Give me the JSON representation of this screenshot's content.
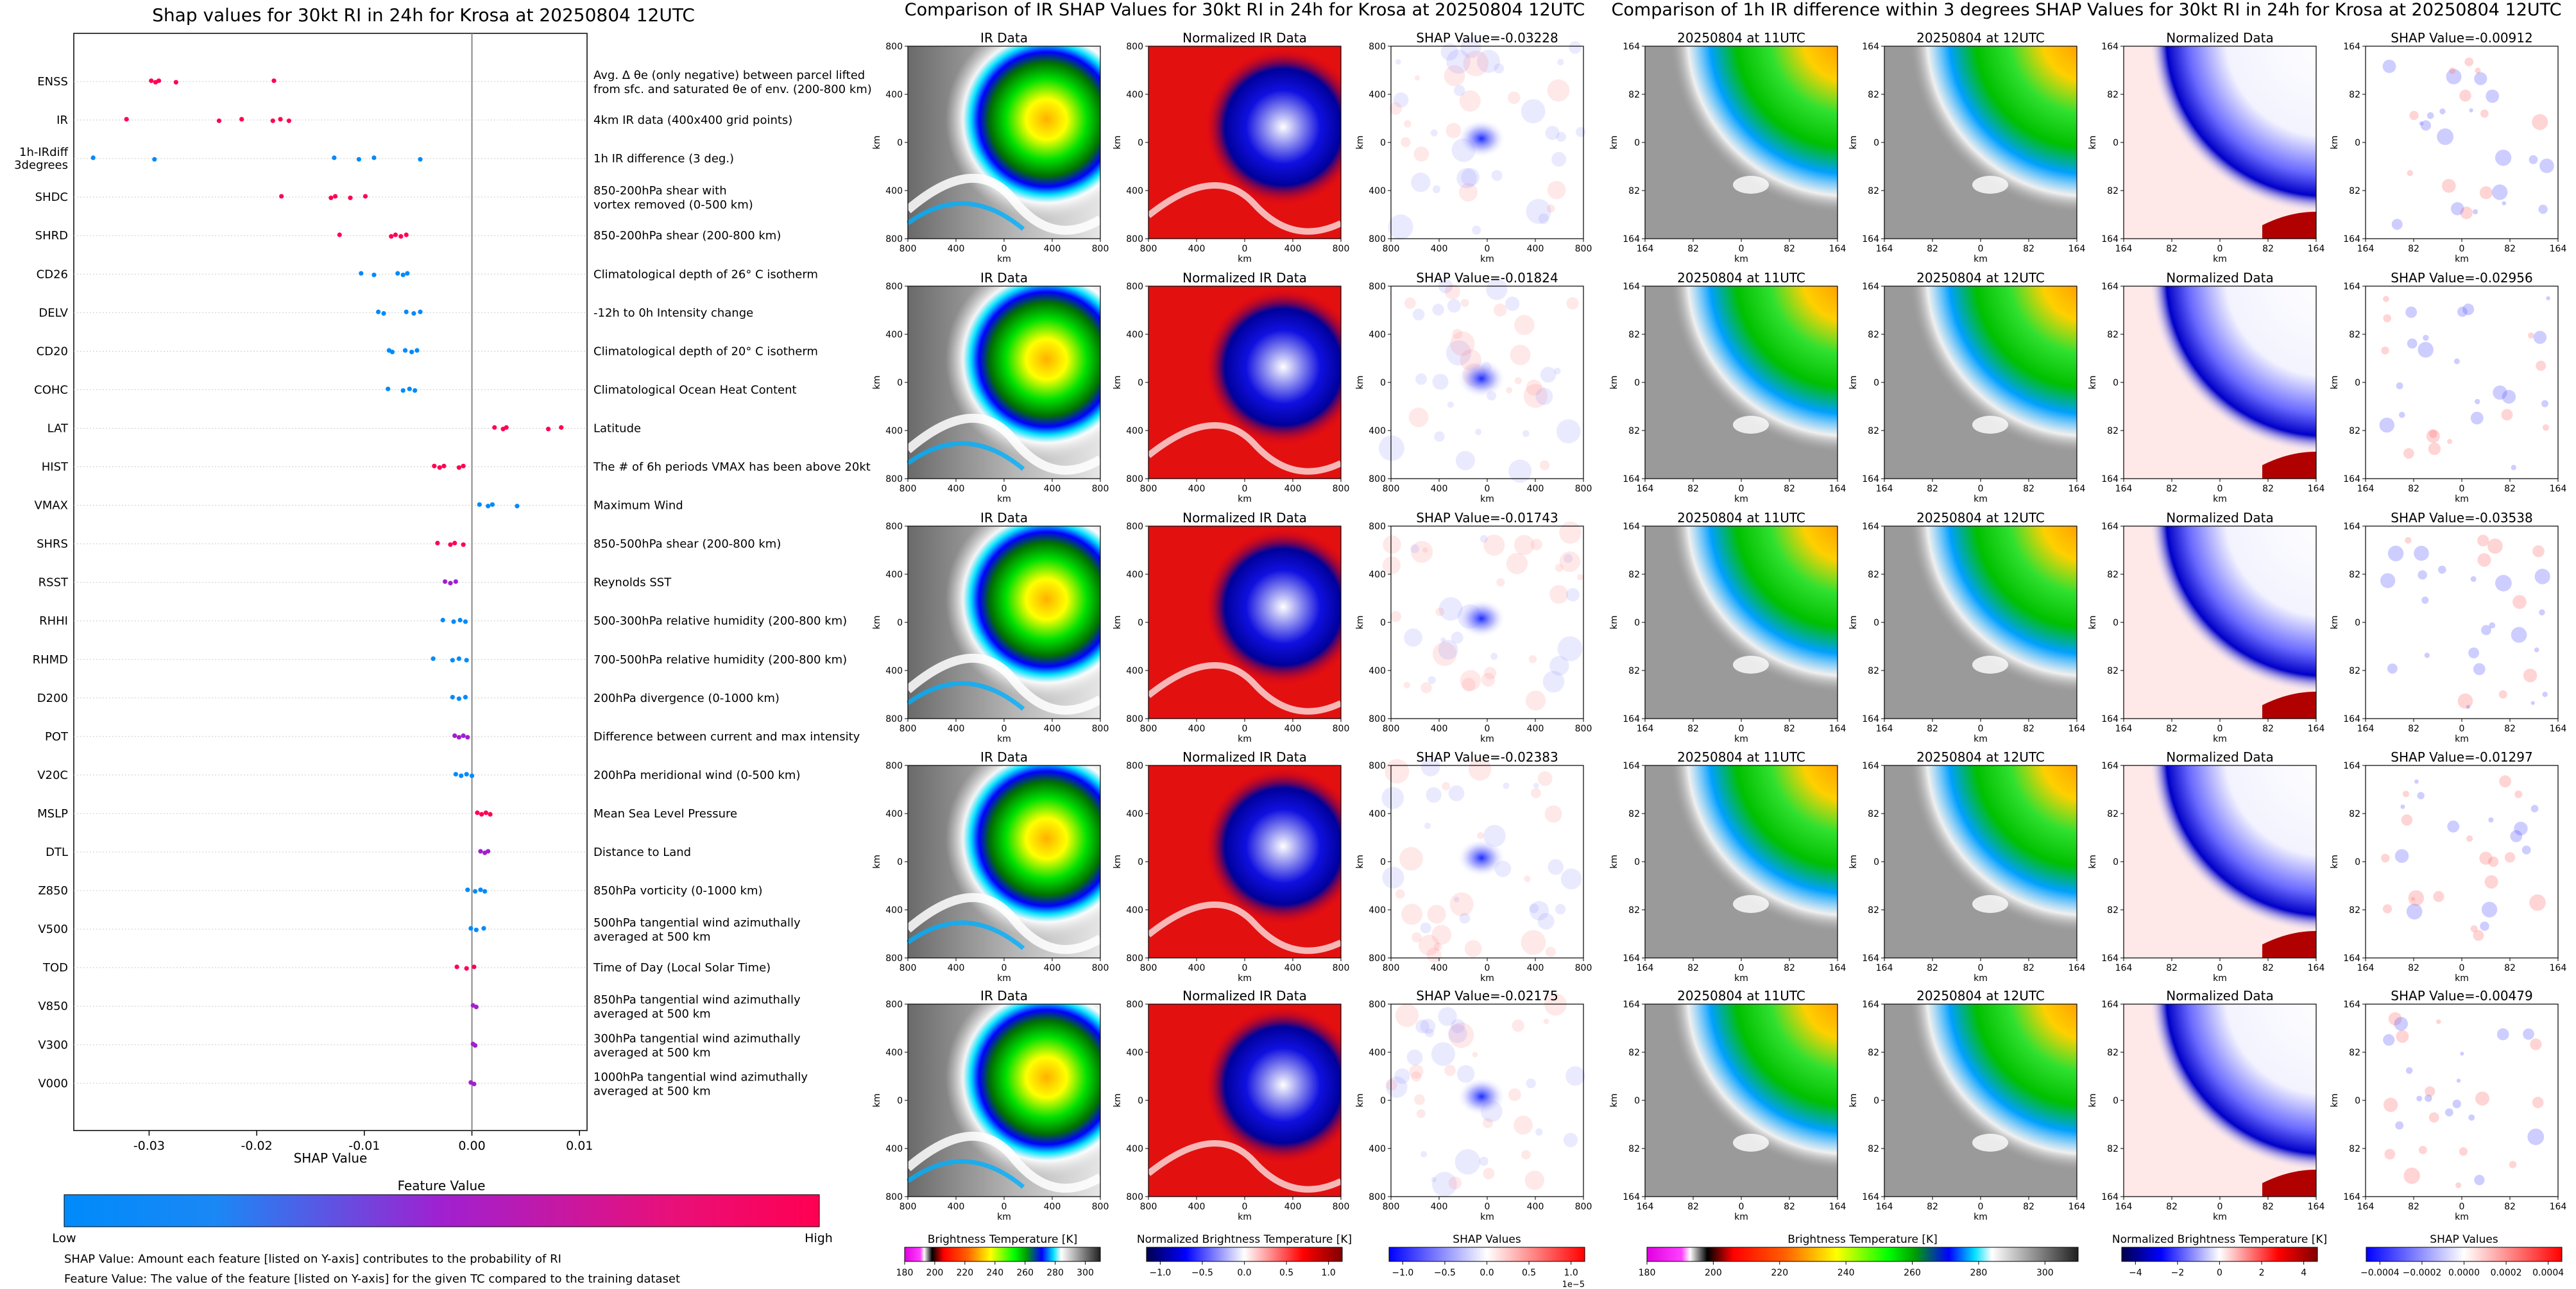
{
  "swarm": {
    "title": "Shap values for 30kt RI in 24h for Krosa at 20250804 12UTC",
    "xlabel": "SHAP Value",
    "xticks": [
      "-0.03",
      "-0.02",
      "-0.01",
      "0.00",
      "0.01"
    ],
    "colorbar_title": "Feature Value",
    "colorbar_low": "Low",
    "colorbar_high": "High",
    "note1": "SHAP Value: Amount each feature [listed on Y-axis] contributes to the probability of RI",
    "note2": "Feature Value: The value of the feature [listed on Y-axis] for the given TC compared to the training dataset"
  },
  "chart_data": [
    {
      "type": "scatter",
      "title": "Shap values for 30kt RI in 24h for Krosa at 20250804 12UTC",
      "xlabel": "SHAP Value",
      "xlim": [
        -0.037,
        0.0107
      ],
      "colors": {
        "low": "#008afb",
        "mid": "#a020d0",
        "high": "#ff0052"
      },
      "features": [
        {
          "code": "ENSS",
          "desc": [
            "Avg. Δ θe (only negative) between parcel lifted",
            "from sfc. and saturated θe of env. (200-800 km)"
          ],
          "points": [
            [
              -0.0298,
              "high"
            ],
            [
              -0.0294,
              "high"
            ],
            [
              -0.0291,
              "high"
            ],
            [
              -0.0275,
              "high"
            ],
            [
              -0.0184,
              "high"
            ]
          ]
        },
        {
          "code": "IR",
          "desc": [
            "4km IR data (400x400 grid points)"
          ],
          "points": [
            [
              -0.0321,
              "high"
            ],
            [
              -0.0235,
              "high"
            ],
            [
              -0.0214,
              "high"
            ],
            [
              -0.0185,
              "high"
            ],
            [
              -0.0178,
              "high"
            ],
            [
              -0.017,
              "high"
            ]
          ]
        },
        {
          "code": "1h-IRdiff 3degrees",
          "desc": [
            "1h IR difference (3 deg.)"
          ],
          "points": [
            [
              -0.0352,
              "low"
            ],
            [
              -0.0295,
              "low"
            ],
            [
              -0.0128,
              "low"
            ],
            [
              -0.0105,
              "low"
            ],
            [
              -0.0091,
              "low"
            ],
            [
              -0.0048,
              "low"
            ]
          ]
        },
        {
          "code": "SHDC",
          "desc": [
            "850-200hPa shear with",
            "vortex removed (0-500 km)"
          ],
          "points": [
            [
              -0.0177,
              "high"
            ],
            [
              -0.0131,
              "high"
            ],
            [
              -0.0127,
              "high"
            ],
            [
              -0.0113,
              "high"
            ],
            [
              -0.0099,
              "high"
            ]
          ]
        },
        {
          "code": "SHRD",
          "desc": [
            "850-200hPa shear (200-800 km)"
          ],
          "points": [
            [
              -0.0123,
              "high"
            ],
            [
              -0.0075,
              "high"
            ],
            [
              -0.0071,
              "high"
            ],
            [
              -0.0066,
              "high"
            ],
            [
              -0.0061,
              "high"
            ]
          ]
        },
        {
          "code": "CD26",
          "desc": [
            "Climatological depth of 26° C isotherm"
          ],
          "points": [
            [
              -0.0103,
              "low"
            ],
            [
              -0.0091,
              "low"
            ],
            [
              -0.0069,
              "low"
            ],
            [
              -0.0064,
              "low"
            ],
            [
              -0.006,
              "low"
            ]
          ]
        },
        {
          "code": "DELV",
          "desc": [
            "-12h to 0h Intensity change"
          ],
          "points": [
            [
              -0.0087,
              "low"
            ],
            [
              -0.0082,
              "low"
            ],
            [
              -0.0061,
              "low"
            ],
            [
              -0.0054,
              "low"
            ],
            [
              -0.0048,
              "low"
            ]
          ]
        },
        {
          "code": "CD20",
          "desc": [
            "Climatological depth of 20° C isotherm"
          ],
          "points": [
            [
              -0.0077,
              "low"
            ],
            [
              -0.0074,
              "low"
            ],
            [
              -0.0062,
              "low"
            ],
            [
              -0.0056,
              "low"
            ],
            [
              -0.0051,
              "low"
            ]
          ]
        },
        {
          "code": "COHC",
          "desc": [
            "Climatological Ocean Heat Content"
          ],
          "points": [
            [
              -0.0078,
              "low"
            ],
            [
              -0.0064,
              "low"
            ],
            [
              -0.0058,
              "low"
            ],
            [
              -0.0053,
              "low"
            ]
          ]
        },
        {
          "code": "LAT",
          "desc": [
            "Latitude"
          ],
          "points": [
            [
              0.0021,
              "high"
            ],
            [
              0.0029,
              "high"
            ],
            [
              0.0032,
              "high"
            ],
            [
              0.0071,
              "high"
            ],
            [
              0.0083,
              "high"
            ]
          ]
        },
        {
          "code": "HIST",
          "desc": [
            "The # of 6h periods VMAX has been above 20kt"
          ],
          "points": [
            [
              -0.0035,
              "high"
            ],
            [
              -0.003,
              "high"
            ],
            [
              -0.0026,
              "high"
            ],
            [
              -0.0012,
              "high"
            ],
            [
              -0.0008,
              "high"
            ]
          ]
        },
        {
          "code": "VMAX",
          "desc": [
            "Maximum Wind"
          ],
          "points": [
            [
              0.0007,
              "low"
            ],
            [
              0.0015,
              "low"
            ],
            [
              0.0019,
              "low"
            ],
            [
              0.0042,
              "low"
            ]
          ]
        },
        {
          "code": "SHRS",
          "desc": [
            "850-500hPa shear (200-800 km)"
          ],
          "points": [
            [
              -0.0032,
              "high"
            ],
            [
              -0.002,
              "high"
            ],
            [
              -0.0016,
              "high"
            ],
            [
              -0.0008,
              "high"
            ]
          ]
        },
        {
          "code": "RSST",
          "desc": [
            "Reynolds SST"
          ],
          "points": [
            [
              -0.0025,
              "mid"
            ],
            [
              -0.002,
              "mid"
            ],
            [
              -0.0015,
              "mid"
            ]
          ]
        },
        {
          "code": "RHHI",
          "desc": [
            "500-300hPa relative humidity (200-800 km)"
          ],
          "points": [
            [
              -0.0027,
              "low"
            ],
            [
              -0.0017,
              "low"
            ],
            [
              -0.0011,
              "low"
            ],
            [
              -0.0006,
              "low"
            ]
          ]
        },
        {
          "code": "RHMD",
          "desc": [
            "700-500hPa relative humidity (200-800 km)"
          ],
          "points": [
            [
              -0.0036,
              "low"
            ],
            [
              -0.0018,
              "low"
            ],
            [
              -0.0012,
              "low"
            ],
            [
              -0.0005,
              "low"
            ]
          ]
        },
        {
          "code": "D200",
          "desc": [
            "200hPa divergence (0-1000 km)"
          ],
          "points": [
            [
              -0.0018,
              "low"
            ],
            [
              -0.0012,
              "low"
            ],
            [
              -0.0006,
              "low"
            ]
          ]
        },
        {
          "code": "POT",
          "desc": [
            "Difference between current and max intensity"
          ],
          "points": [
            [
              -0.0016,
              "mid"
            ],
            [
              -0.0012,
              "mid"
            ],
            [
              -0.0008,
              "mid"
            ],
            [
              -0.0004,
              "mid"
            ]
          ]
        },
        {
          "code": "V20C",
          "desc": [
            "200hPa meridional wind (0-500 km)"
          ],
          "points": [
            [
              -0.0015,
              "low"
            ],
            [
              -0.001,
              "low"
            ],
            [
              -0.0005,
              "low"
            ],
            [
              0.0,
              "low"
            ]
          ]
        },
        {
          "code": "MSLP",
          "desc": [
            "Mean Sea Level Pressure"
          ],
          "points": [
            [
              0.0005,
              "high"
            ],
            [
              0.0009,
              "high"
            ],
            [
              0.0013,
              "high"
            ],
            [
              0.0017,
              "high"
            ]
          ]
        },
        {
          "code": "DTL",
          "desc": [
            "Distance to Land"
          ],
          "points": [
            [
              0.0008,
              "mid"
            ],
            [
              0.0012,
              "mid"
            ],
            [
              0.0015,
              "mid"
            ]
          ]
        },
        {
          "code": "Z850",
          "desc": [
            "850hPa vorticity (0-1000 km)"
          ],
          "points": [
            [
              -0.0004,
              "low"
            ],
            [
              0.0003,
              "low"
            ],
            [
              0.0008,
              "low"
            ],
            [
              0.0012,
              "low"
            ]
          ]
        },
        {
          "code": "V500",
          "desc": [
            "500hPa tangential wind azimuthally",
            "averaged at 500 km"
          ],
          "points": [
            [
              -0.0001,
              "low"
            ],
            [
              0.0004,
              "low"
            ],
            [
              0.0011,
              "low"
            ]
          ]
        },
        {
          "code": "TOD",
          "desc": [
            "Time of Day (Local Solar Time)"
          ],
          "points": [
            [
              -0.0014,
              "high"
            ],
            [
              -0.0005,
              "high"
            ],
            [
              0.0002,
              "high"
            ]
          ]
        },
        {
          "code": "V850",
          "desc": [
            "850hPa tangential wind azimuthally",
            "averaged at 500 km"
          ],
          "points": [
            [
              0.0001,
              "mid"
            ],
            [
              0.0004,
              "mid"
            ]
          ]
        },
        {
          "code": "V300",
          "desc": [
            "300hPa tangential wind azimuthally",
            "averaged at 500 km"
          ],
          "points": [
            [
              0.0001,
              "mid"
            ],
            [
              0.0003,
              "mid"
            ]
          ]
        },
        {
          "code": "V000",
          "desc": [
            "1000hPa tangential wind azimuthally",
            "averaged at 500 km"
          ],
          "points": [
            [
              -0.0001,
              "mid"
            ],
            [
              0.0002,
              "mid"
            ]
          ]
        }
      ]
    },
    {
      "type": "heatmap",
      "title": "Comparison of IR SHAP Values for 30kt RI in 24h for Krosa at 20250804 12UTC",
      "panels": [
        "IR Data",
        "Normalized IR Data"
      ],
      "shap_titles": [
        "SHAP Value=-0.03228",
        "SHAP Value=-0.01824",
        "SHAP Value=-0.01743",
        "SHAP Value=-0.02383",
        "SHAP Value=-0.02175"
      ],
      "axis_ticks": [
        "800",
        "400",
        "0",
        "400",
        "800"
      ],
      "axis_unit": "km",
      "colorbars": [
        {
          "label": "Brightness Temperature [K]",
          "ticks": [
            "180",
            "200",
            "220",
            "240",
            "260",
            "280",
            "300"
          ]
        },
        {
          "label": "Normalized Brightness Temperature [K]",
          "ticks": [
            "−1.0",
            "−0.5",
            "0.0",
            "0.5",
            "1.0"
          ]
        },
        {
          "label": "SHAP Values",
          "ticks": [
            "−1.0",
            "−0.5",
            "0.0",
            "0.5",
            "1.0"
          ],
          "scale": "1e−5"
        }
      ]
    },
    {
      "type": "heatmap",
      "title": "Comparison of 1h IR difference within 3 degrees SHAP Values for 30kt RI in 24h for Krosa at 20250804 12UTC",
      "panels": [
        "20250804 at 11UTC",
        "20250804 at 12UTC",
        "Normalized Data"
      ],
      "shap_titles": [
        "SHAP Value=-0.00912",
        "SHAP Value=-0.02956",
        "SHAP Value=-0.03538",
        "SHAP Value=-0.01297",
        "SHAP Value=-0.00479"
      ],
      "axis_ticks": [
        "164",
        "82",
        "0",
        "82",
        "164"
      ],
      "axis_unit": "km",
      "colorbars": [
        {
          "label": "Brightness Temperature [K]",
          "ticks": [
            "180",
            "200",
            "220",
            "240",
            "260",
            "280",
            "300"
          ]
        },
        {
          "label": "Normalized Brightness Temperature [K]",
          "ticks": [
            "−4",
            "−2",
            "0",
            "2",
            "4"
          ]
        },
        {
          "label": "SHAP Values",
          "ticks": [
            "−0.0004",
            "−0.0002",
            "0.0000",
            "0.0002",
            "0.0004"
          ]
        }
      ]
    }
  ]
}
